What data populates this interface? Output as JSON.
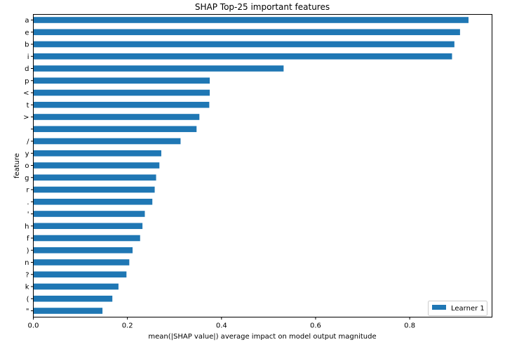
{
  "chart_data": {
    "type": "bar",
    "orientation": "horizontal",
    "title": "SHAP Top-25 important features",
    "xlabel": "mean(|SHAP value|) average impact on model output magnitude",
    "ylabel": "feature",
    "xlim": [
      0,
      0.975
    ],
    "xticks": [
      0.0,
      0.2,
      0.4,
      0.6,
      0.8
    ],
    "xtick_labels": [
      "0.0",
      "0.2",
      "0.4",
      "0.6",
      "0.8"
    ],
    "grid": false,
    "legend_position": "bottom-right",
    "bar_color": "#1f77b4",
    "categories": [
      "a",
      "e",
      "b",
      "i",
      "d",
      "p",
      "<",
      "t",
      ">",
      "",
      "/",
      "y",
      "o",
      "g",
      "r",
      ".",
      "'",
      "h",
      "f",
      ")",
      "n",
      "?",
      "k",
      "(",
      "\""
    ],
    "series": [
      {
        "name": "Learner 1",
        "values": [
          0.925,
          0.907,
          0.895,
          0.89,
          0.532,
          0.375,
          0.375,
          0.374,
          0.353,
          0.347,
          0.313,
          0.272,
          0.268,
          0.261,
          0.258,
          0.253,
          0.237,
          0.232,
          0.227,
          0.211,
          0.204,
          0.198,
          0.181,
          0.168,
          0.147
        ]
      }
    ]
  }
}
